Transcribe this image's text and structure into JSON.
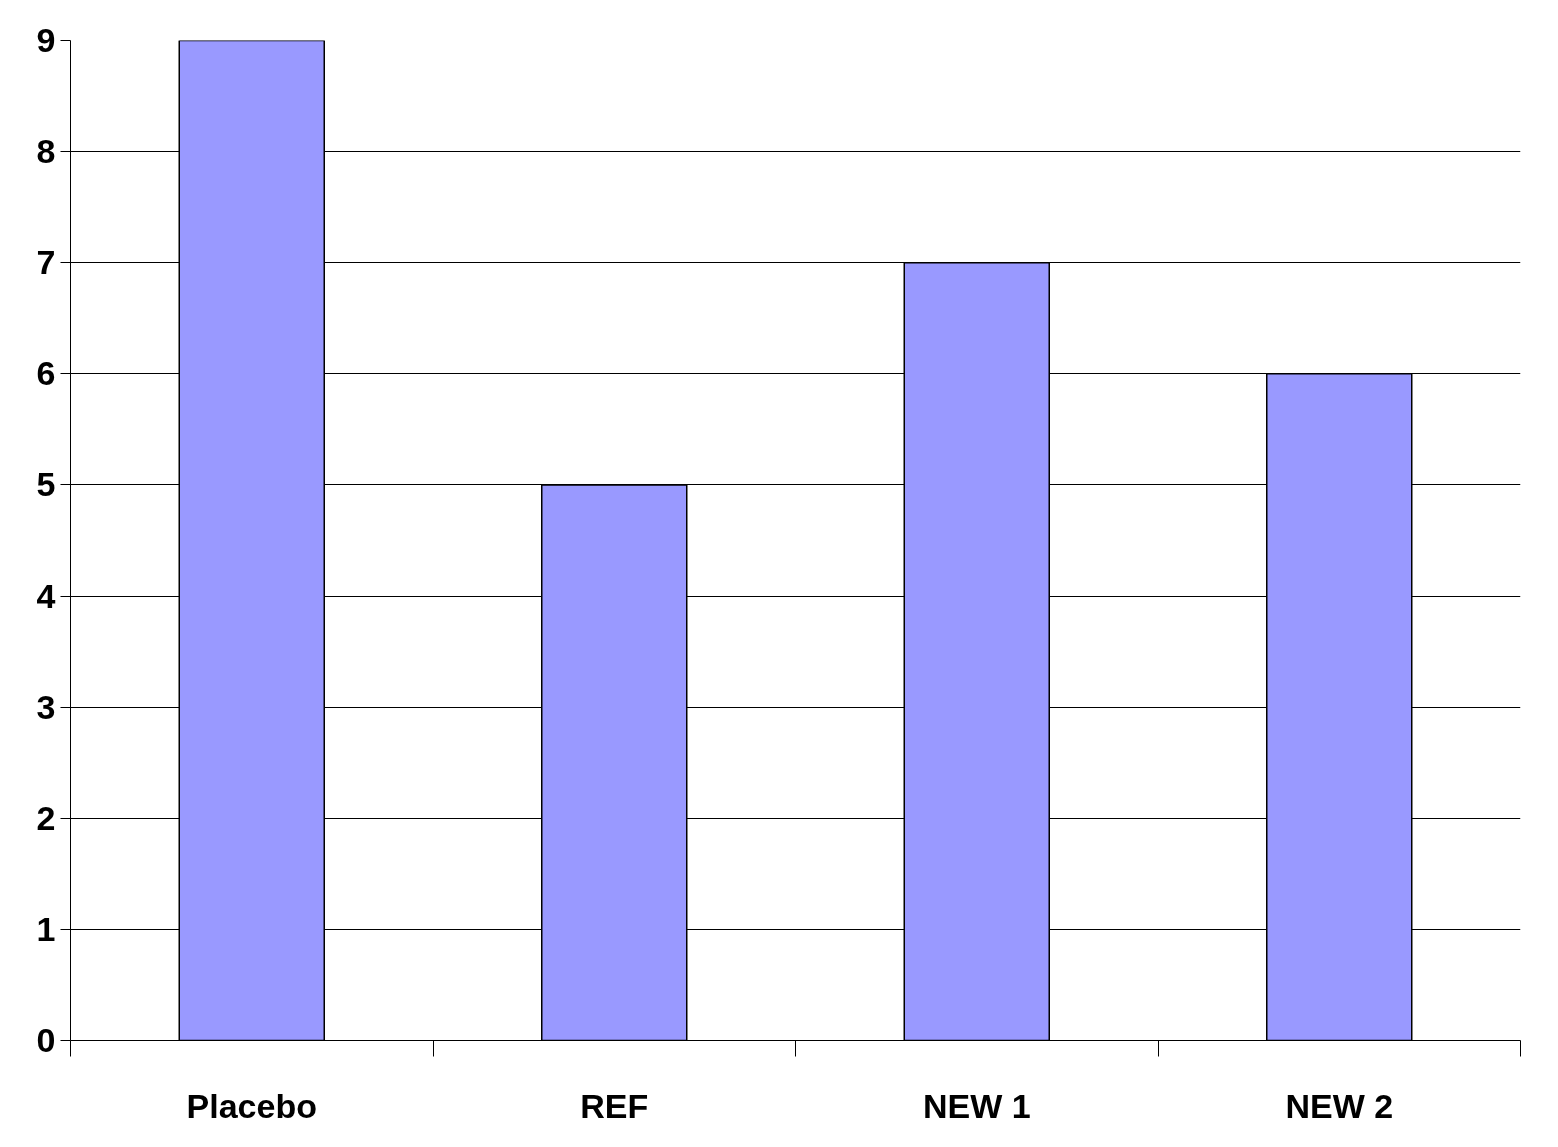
{
  "chart_data": {
    "type": "bar",
    "categories": [
      "Placebo",
      "REF",
      "NEW 1",
      "NEW 2"
    ],
    "values": [
      9,
      5,
      7,
      6
    ],
    "color": "#9999ff",
    "ylim": [
      0,
      9
    ],
    "yticks": [
      0,
      1,
      2,
      3,
      4,
      5,
      6,
      7,
      8,
      9
    ],
    "grid": "y"
  }
}
